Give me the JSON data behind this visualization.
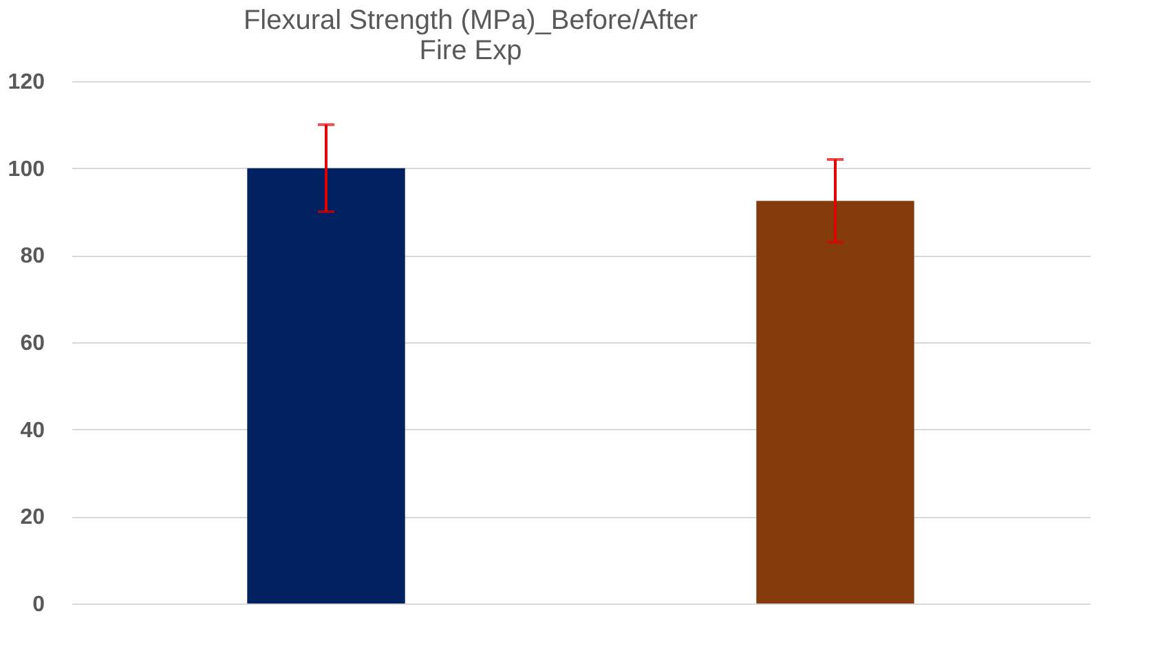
{
  "chart_data": {
    "type": "bar",
    "title": "Flexural Strength (MPa)_Before/After\nFire Exp",
    "categories": [
      null,
      null
    ],
    "values": [
      100,
      92.5
    ],
    "colors": [
      "#002060",
      "#843c0c"
    ],
    "errors": [
      10,
      9.5
    ],
    "ylim": [
      0,
      120
    ],
    "yticks": [
      0,
      20,
      40,
      60,
      80,
      100,
      120
    ],
    "grid": "y",
    "tick_labels": "y"
  }
}
